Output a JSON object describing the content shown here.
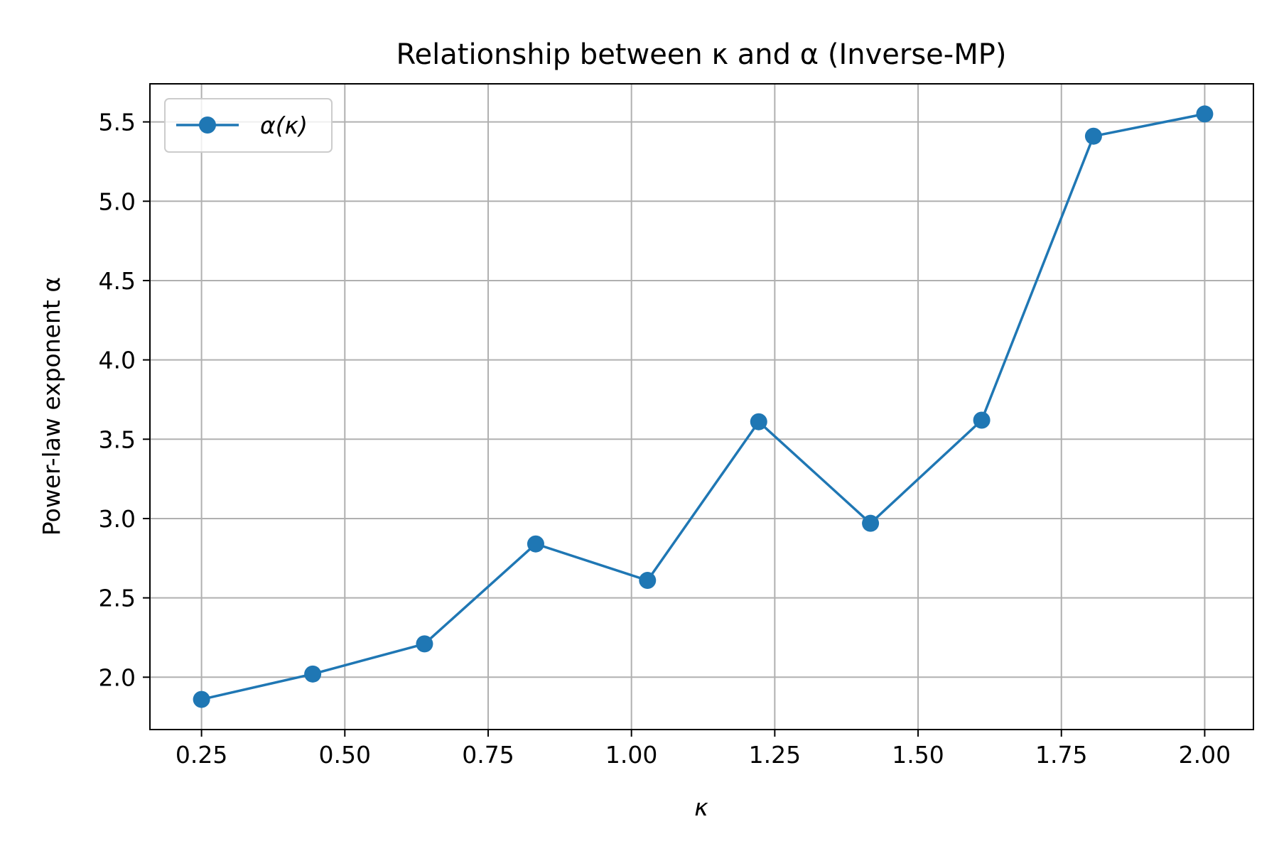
{
  "chart_data": {
    "type": "line",
    "title": "Relationship between κ and α (Inverse-MP)",
    "xlabel": "κ",
    "ylabel": "Power-law exponent α",
    "xlim": [
      0.16,
      2.085
    ],
    "ylim": [
      1.67,
      5.74
    ],
    "xticks": [
      0.25,
      0.5,
      0.75,
      1.0,
      1.25,
      1.5,
      1.75,
      2.0
    ],
    "xtick_labels": [
      "0.25",
      "0.50",
      "0.75",
      "1.00",
      "1.25",
      "1.50",
      "1.75",
      "2.00"
    ],
    "yticks": [
      2.0,
      2.5,
      3.0,
      3.5,
      4.0,
      4.5,
      5.0,
      5.5
    ],
    "ytick_labels": [
      "2.0",
      "2.5",
      "3.0",
      "3.5",
      "4.0",
      "4.5",
      "5.0",
      "5.5"
    ],
    "grid": true,
    "legend_position": "upper-left",
    "series": [
      {
        "name": "α(κ)",
        "color": "#1f77b4",
        "marker": "circle",
        "x": [
          0.25,
          0.444,
          0.639,
          0.833,
          1.028,
          1.222,
          1.417,
          1.611,
          1.806,
          2.0
        ],
        "y": [
          1.86,
          2.02,
          2.21,
          2.84,
          2.61,
          3.61,
          2.97,
          3.62,
          5.41,
          5.55
        ]
      }
    ]
  }
}
